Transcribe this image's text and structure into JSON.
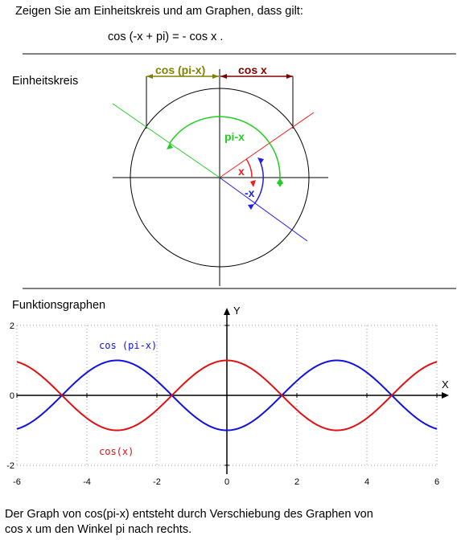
{
  "header": {
    "task": "Zeigen Sie am Einheitskreis und am Graphen, dass gilt:",
    "identity": "cos (-x + pi) = - cos x  ."
  },
  "unit_circle": {
    "title": "Einheitskreis",
    "label_cos_pi_minus_x": "cos (pi-x)",
    "label_cos_x": "cos x",
    "label_pi_minus_x": "pi-x",
    "label_x": "x",
    "label_minus_x": "-x",
    "colors": {
      "cos_pi_minus_x": "#808000",
      "cos_x": "#800000",
      "angle_pi_minus_x": "#22cc22",
      "angle_x": "#ee2020",
      "angle_minus_x": "#2020dd",
      "axes": "#000000"
    }
  },
  "graph": {
    "title": "Funktionsgraphen",
    "y_axis_label": "Y",
    "x_axis_label": "X",
    "legend_blue": "cos (pi-x)",
    "legend_red": "cos(x)"
  },
  "chart_data": {
    "type": "line",
    "x_range": [
      -6,
      6
    ],
    "y_range": [
      -2,
      2
    ],
    "x_ticks": [
      -6,
      -4,
      -2,
      0,
      2,
      4,
      6
    ],
    "y_ticks": [
      -2,
      0,
      2
    ],
    "x_tick_labels": [
      "-6",
      "-4",
      "-2",
      "0",
      "2",
      "4",
      "6"
    ],
    "y_tick_labels": [
      "-2",
      "0",
      "2"
    ],
    "grid": true,
    "series": [
      {
        "name": "cos (pi-x)",
        "function": "cos(pi-x)",
        "color": "#1010e0"
      },
      {
        "name": "cos(x)",
        "function": "cos(x)",
        "color": "#e01010"
      }
    ]
  },
  "footer": {
    "line1": "Der Graph  von cos(pi-x) entsteht durch Verschiebung des Graphen von",
    "line2": "cos x  um den Winkel pi nach rechts."
  }
}
